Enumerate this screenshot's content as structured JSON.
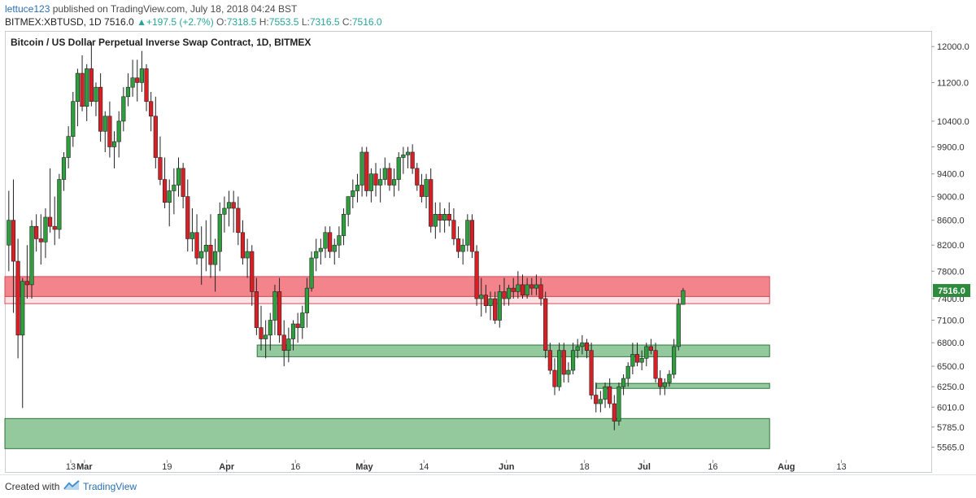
{
  "header": {
    "author": "lettuce123",
    "published_text": "published on TradingView.com, July 18, 2018 04:24 BST",
    "symbol": "BITMEX:XBTUSD, 1D",
    "last": "7516.0",
    "change": "+197.5 (+2.7%)",
    "o_label": "O:",
    "o_value": "7318.5",
    "h_label": "H:",
    "h_value": "7553.5",
    "l_label": "L:",
    "l_value": "7316.5",
    "c_label": "C:",
    "c_value": "7516.0"
  },
  "footer": {
    "created_with": "Created with",
    "brand": "TradingView"
  },
  "colors": {
    "up": "#2e9e3e",
    "down": "#d81f26",
    "resistance": "#f26f78",
    "support": "#6fb77c"
  },
  "chart_data": {
    "type": "candlestick",
    "title": "Bitcoin / US Dollar Perpetual Inverse Swap Contract, 1D, BITMEX",
    "y_axis": {
      "scale": "log",
      "ticks": [
        "12000.0",
        "11200.0",
        "10400.0",
        "9900.0",
        "9400.0",
        "9000.0",
        "8600.0",
        "8200.0",
        "7800.0",
        "7400.0",
        "7100.0",
        "6800.0",
        "6500.0",
        "6250.0",
        "6010.0",
        "5785.0",
        "5565.0"
      ],
      "range": [
        5450,
        12250
      ]
    },
    "x_axis": {
      "ticks": [
        {
          "label": "13",
          "day": 14
        },
        {
          "label": "Mar",
          "day": 17,
          "major": true
        },
        {
          "label": "19",
          "day": 35
        },
        {
          "label": "Apr",
          "day": 48,
          "major": true
        },
        {
          "label": "16",
          "day": 63
        },
        {
          "label": "May",
          "day": 78,
          "major": true
        },
        {
          "label": "14",
          "day": 91
        },
        {
          "label": "Jun",
          "day": 109,
          "major": true
        },
        {
          "label": "18",
          "day": 126
        },
        {
          "label": "Jul",
          "day": 139,
          "major": true
        },
        {
          "label": "16",
          "day": 154
        },
        {
          "label": "Aug",
          "day": 170,
          "major": true
        },
        {
          "label": "13",
          "day": 182
        }
      ]
    },
    "last_price": "7516.0",
    "zones": [
      {
        "name": "resistance",
        "low": 7430,
        "high": 7720,
        "from_day": 0,
        "to_day": 166
      },
      {
        "name": "support-1",
        "low": 6620,
        "high": 6770,
        "from_day": 55,
        "to_day": 166
      },
      {
        "name": "support-2",
        "low": 6230,
        "high": 6290,
        "from_day": 129,
        "to_day": 166
      },
      {
        "name": "support-3",
        "low": 5550,
        "high": 5880,
        "from_day": 0,
        "to_day": 166
      }
    ],
    "candles": [
      [
        8200,
        9100,
        7800,
        8600
      ],
      [
        8600,
        9300,
        7200,
        7950
      ],
      [
        7950,
        8300,
        6600,
        6900
      ],
      [
        6900,
        7700,
        6000,
        7650
      ],
      [
        7650,
        8200,
        7400,
        7600
      ],
      [
        7600,
        8600,
        7400,
        8500
      ],
      [
        8500,
        8700,
        8100,
        8300
      ],
      [
        8300,
        8700,
        7900,
        8250
      ],
      [
        8250,
        8800,
        8000,
        8650
      ],
      [
        8650,
        9500,
        8400,
        8500
      ],
      [
        8500,
        9000,
        8200,
        8450
      ],
      [
        8450,
        9400,
        8300,
        9300
      ],
      [
        9300,
        9800,
        9100,
        9700
      ],
      [
        9700,
        10300,
        9500,
        10100
      ],
      [
        10100,
        11000,
        9900,
        10800
      ],
      [
        10800,
        11500,
        10300,
        11400
      ],
      [
        11400,
        11800,
        10600,
        10700
      ],
      [
        10700,
        11600,
        10400,
        11500
      ],
      [
        11500,
        12100,
        10700,
        10800
      ],
      [
        10800,
        11200,
        10500,
        11100
      ],
      [
        11100,
        11400,
        10000,
        10200
      ],
      [
        10200,
        10600,
        9800,
        10500
      ],
      [
        10500,
        10800,
        9700,
        9900
      ],
      [
        9900,
        10200,
        9500,
        10000
      ],
      [
        10000,
        10600,
        9700,
        10400
      ],
      [
        10400,
        11100,
        10200,
        10900
      ],
      [
        10900,
        11400,
        10700,
        11100
      ],
      [
        11100,
        11700,
        10900,
        11300
      ],
      [
        11300,
        11700,
        10800,
        11200
      ],
      [
        11200,
        11900,
        11000,
        11500
      ],
      [
        11500,
        11600,
        10600,
        10800
      ],
      [
        10800,
        11000,
        10200,
        10500
      ],
      [
        10500,
        10900,
        9500,
        9700
      ],
      [
        9700,
        10100,
        9200,
        9300
      ],
      [
        9300,
        9700,
        8800,
        8900
      ],
      [
        8900,
        9300,
        8500,
        9100
      ],
      [
        9100,
        9500,
        8700,
        9200
      ],
      [
        9200,
        9700,
        9000,
        9500
      ],
      [
        9500,
        9600,
        8800,
        9000
      ],
      [
        9000,
        9300,
        8100,
        8300
      ],
      [
        8300,
        8800,
        8100,
        8400
      ],
      [
        8400,
        8700,
        7900,
        8000
      ],
      [
        8000,
        8500,
        7600,
        8100
      ],
      [
        8100,
        8600,
        7800,
        8200
      ],
      [
        8200,
        8700,
        7700,
        7900
      ],
      [
        7900,
        8300,
        7500,
        8100
      ],
      [
        8100,
        8900,
        7800,
        8700
      ],
      [
        8700,
        9000,
        8400,
        8800
      ],
      [
        8800,
        9100,
        8500,
        8900
      ],
      [
        8900,
        9100,
        8400,
        8800
      ],
      [
        8800,
        9000,
        8200,
        8400
      ],
      [
        8400,
        8600,
        7900,
        8000
      ],
      [
        8000,
        8300,
        7700,
        8100
      ],
      [
        8100,
        8200,
        7300,
        7500
      ],
      [
        7500,
        7700,
        6900,
        7000
      ],
      [
        7000,
        7300,
        6700,
        6850
      ],
      [
        6850,
        7100,
        6600,
        6900
      ],
      [
        6900,
        7200,
        6700,
        7100
      ],
      [
        7100,
        7600,
        6900,
        7500
      ],
      [
        7500,
        7700,
        6800,
        6900
      ],
      [
        6900,
        7100,
        6500,
        6700
      ],
      [
        6700,
        7000,
        6550,
        6850
      ],
      [
        6850,
        7100,
        6700,
        7050
      ],
      [
        7050,
        7200,
        6800,
        7000
      ],
      [
        7000,
        7300,
        6850,
        7200
      ],
      [
        7200,
        7700,
        7000,
        7550
      ],
      [
        7550,
        8100,
        7500,
        8000
      ],
      [
        8000,
        8300,
        7800,
        8100
      ],
      [
        8100,
        8300,
        7900,
        8150
      ],
      [
        8150,
        8500,
        8000,
        8400
      ],
      [
        8400,
        8500,
        8000,
        8100
      ],
      [
        8100,
        8300,
        7900,
        8200
      ],
      [
        8200,
        8500,
        8000,
        8350
      ],
      [
        8350,
        8800,
        8200,
        8700
      ],
      [
        8700,
        9000,
        8500,
        9000
      ],
      [
        9000,
        9300,
        8800,
        9100
      ],
      [
        9100,
        9400,
        8900,
        9200
      ],
      [
        9200,
        9900,
        9000,
        9800
      ],
      [
        9800,
        9900,
        9000,
        9100
      ],
      [
        9100,
        9500,
        8900,
        9400
      ],
      [
        9400,
        9600,
        9000,
        9200
      ],
      [
        9200,
        9500,
        8900,
        9300
      ],
      [
        9300,
        9700,
        9200,
        9500
      ],
      [
        9500,
        9600,
        9100,
        9200
      ],
      [
        9200,
        9500,
        9000,
        9300
      ],
      [
        9300,
        9800,
        9100,
        9700
      ],
      [
        9700,
        9900,
        9400,
        9750
      ],
      [
        9750,
        9900,
        9500,
        9800
      ],
      [
        9800,
        9950,
        9400,
        9500
      ],
      [
        9500,
        9600,
        9100,
        9200
      ],
      [
        9200,
        9400,
        8900,
        9000
      ],
      [
        9000,
        9400,
        8800,
        9300
      ],
      [
        9300,
        9500,
        8400,
        8500
      ],
      [
        8500,
        8900,
        8300,
        8700
      ],
      [
        8700,
        8900,
        8400,
        8600
      ],
      [
        8600,
        8800,
        8400,
        8700
      ],
      [
        8700,
        8900,
        8500,
        8600
      ],
      [
        8600,
        8800,
        8200,
        8300
      ],
      [
        8300,
        8500,
        8000,
        8100
      ],
      [
        8100,
        8300,
        7900,
        8200
      ],
      [
        8200,
        8700,
        8100,
        8600
      ],
      [
        8600,
        8700,
        8000,
        8100
      ],
      [
        8100,
        8200,
        7300,
        7400
      ],
      [
        7400,
        7700,
        7150,
        7450
      ],
      [
        7450,
        7600,
        7200,
        7300
      ],
      [
        7300,
        7500,
        7100,
        7400
      ],
      [
        7400,
        7500,
        7050,
        7100
      ],
      [
        7100,
        7600,
        7000,
        7500
      ],
      [
        7500,
        7700,
        7300,
        7400
      ],
      [
        7400,
        7600,
        7300,
        7550
      ],
      [
        7550,
        7700,
        7400,
        7500
      ],
      [
        7500,
        7800,
        7400,
        7600
      ],
      [
        7600,
        7750,
        7400,
        7450
      ],
      [
        7450,
        7700,
        7400,
        7600
      ],
      [
        7600,
        7700,
        7450,
        7550
      ],
      [
        7550,
        7750,
        7450,
        7600
      ],
      [
        7600,
        7700,
        7300,
        7400
      ],
      [
        7400,
        7500,
        6600,
        6700
      ],
      [
        6700,
        6800,
        6400,
        6450
      ],
      [
        6450,
        6600,
        6150,
        6250
      ],
      [
        6250,
        6800,
        6200,
        6700
      ],
      [
        6700,
        6800,
        6300,
        6400
      ],
      [
        6400,
        6550,
        6300,
        6450
      ],
      [
        6450,
        6800,
        6400,
        6700
      ],
      [
        6700,
        6850,
        6600,
        6750
      ],
      [
        6750,
        6900,
        6650,
        6800
      ],
      [
        6800,
        6850,
        6600,
        6700
      ],
      [
        6700,
        6800,
        6100,
        6150
      ],
      [
        6150,
        6300,
        5950,
        6050
      ],
      [
        6050,
        6200,
        5950,
        6100
      ],
      [
        6100,
        6300,
        6000,
        6250
      ],
      [
        6250,
        6350,
        6000,
        6050
      ],
      [
        6050,
        6150,
        5750,
        5850
      ],
      [
        5850,
        6300,
        5800,
        6250
      ],
      [
        6250,
        6400,
        6150,
        6350
      ],
      [
        6350,
        6550,
        6250,
        6500
      ],
      [
        6500,
        6800,
        6400,
        6650
      ],
      [
        6650,
        6800,
        6500,
        6550
      ],
      [
        6550,
        6700,
        6450,
        6600
      ],
      [
        6600,
        6800,
        6500,
        6750
      ],
      [
        6750,
        6850,
        6650,
        6700
      ],
      [
        6700,
        6800,
        6300,
        6350
      ],
      [
        6350,
        6450,
        6150,
        6250
      ],
      [
        6250,
        6350,
        6150,
        6300
      ],
      [
        6300,
        6450,
        6250,
        6400
      ],
      [
        6400,
        6850,
        6350,
        6750
      ],
      [
        6750,
        7400,
        6700,
        7320
      ],
      [
        7318.5,
        7553.5,
        7316.5,
        7516
      ]
    ]
  }
}
